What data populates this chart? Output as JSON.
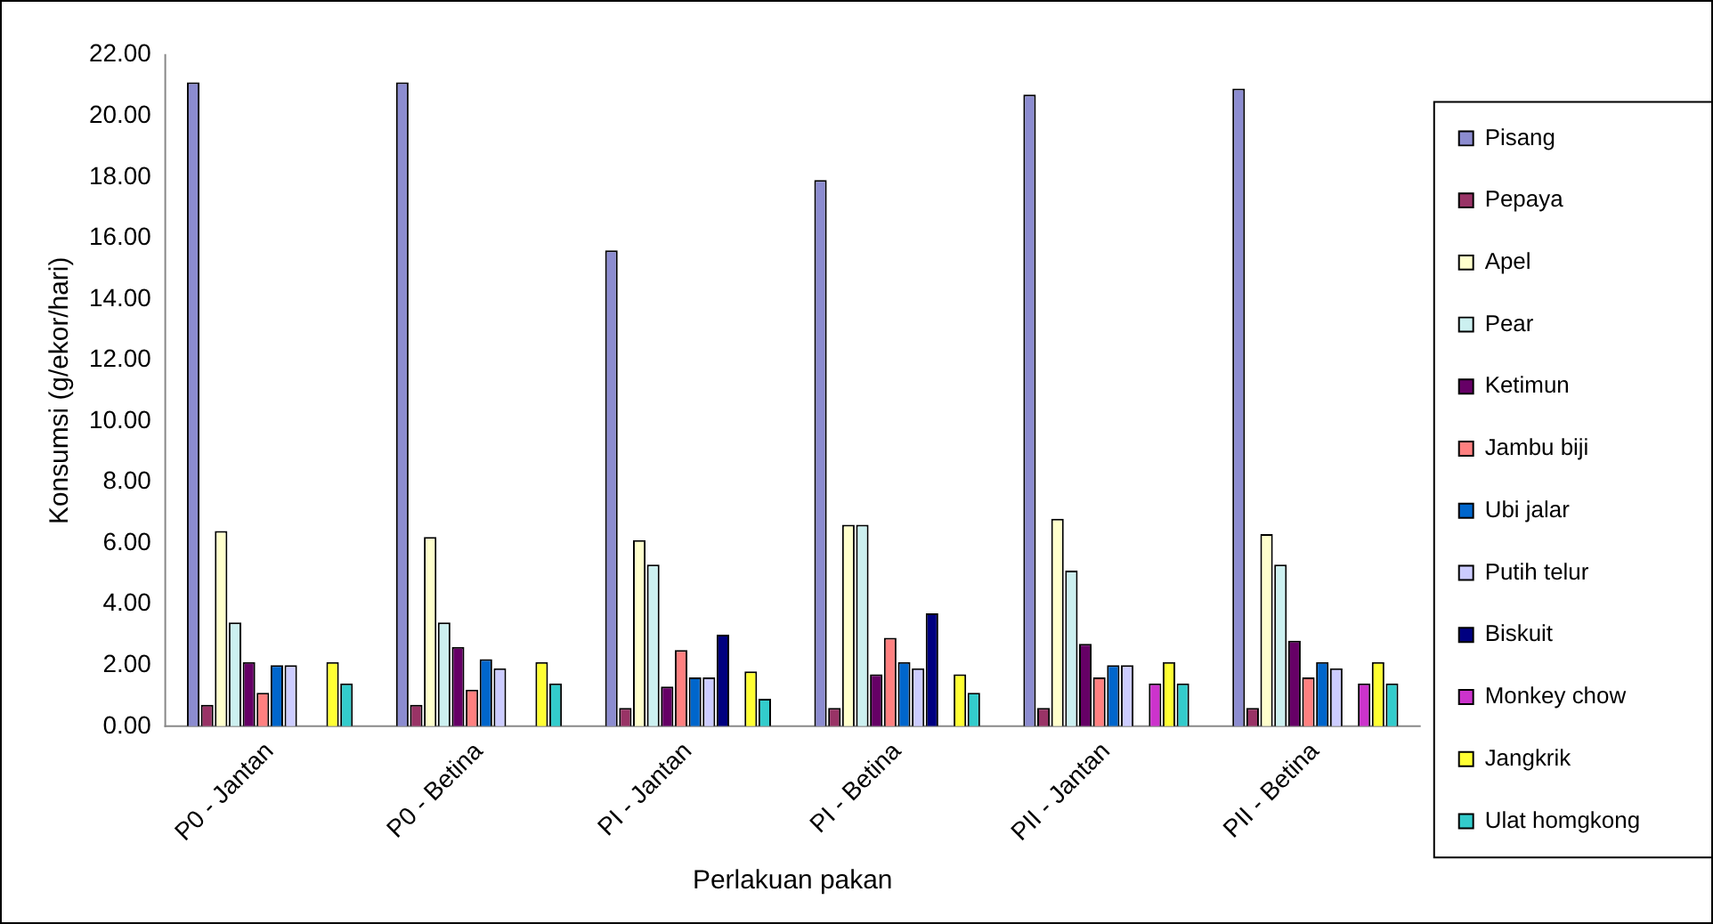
{
  "chart_data": {
    "type": "bar",
    "xlabel": "Perlakuan pakan",
    "ylabel": "Konsumsi (g/ekor/hari)",
    "categories": [
      "P0 - Jantan",
      "P0 - Betina",
      "PI - Jantan",
      "PI - Betina",
      "PII - Jantan",
      "PII - Betina"
    ],
    "ylim": [
      0,
      22
    ],
    "yticks": [
      {
        "value": 0,
        "label": "0.00"
      },
      {
        "value": 2,
        "label": "2.00"
      },
      {
        "value": 4,
        "label": "4.00"
      },
      {
        "value": 6,
        "label": "6.00"
      },
      {
        "value": 8,
        "label": "8.00"
      },
      {
        "value": 10,
        "label": "10.00"
      },
      {
        "value": 12,
        "label": "12.00"
      },
      {
        "value": 14,
        "label": "14.00"
      },
      {
        "value": 16,
        "label": "16.00"
      },
      {
        "value": 18,
        "label": "18.00"
      },
      {
        "value": 20,
        "label": "20.00"
      },
      {
        "value": 22,
        "label": "22.00"
      }
    ],
    "grid": false,
    "legend": "right",
    "series": [
      {
        "name": "Pisang",
        "color": "#8c8cd0",
        "values": [
          21.1,
          21.1,
          15.6,
          17.9,
          20.7,
          20.9
        ]
      },
      {
        "name": "Pepaya",
        "color": "#993366",
        "values": [
          0.7,
          0.7,
          0.6,
          0.6,
          0.6,
          0.6
        ]
      },
      {
        "name": "Apel",
        "color": "#ffffcc",
        "values": [
          6.4,
          6.2,
          6.1,
          6.6,
          6.8,
          6.3
        ]
      },
      {
        "name": "Pear",
        "color": "#ccf0f0",
        "values": [
          3.4,
          3.4,
          5.3,
          6.6,
          5.1,
          5.3
        ]
      },
      {
        "name": "Ketimun",
        "color": "#660066",
        "values": [
          2.1,
          2.6,
          1.3,
          1.7,
          2.7,
          2.8
        ]
      },
      {
        "name": "Jambu biji",
        "color": "#ff8080",
        "values": [
          1.1,
          1.2,
          2.5,
          2.9,
          1.6,
          1.6
        ]
      },
      {
        "name": "Ubi jalar",
        "color": "#0066cc",
        "values": [
          2.0,
          2.2,
          1.6,
          2.1,
          2.0,
          2.1
        ]
      },
      {
        "name": "Putih telur",
        "color": "#ccccff",
        "values": [
          2.0,
          1.9,
          1.6,
          1.9,
          2.0,
          1.9
        ]
      },
      {
        "name": "Biskuit",
        "color": "#000080",
        "values": [
          0,
          0,
          3.0,
          3.7,
          0,
          0
        ]
      },
      {
        "name": "Monkey chow",
        "color": "#cc33cc",
        "values": [
          0,
          0,
          0,
          0,
          1.4,
          1.4
        ]
      },
      {
        "name": "Jangkrik",
        "color": "#ffff33",
        "values": [
          2.1,
          2.1,
          1.8,
          1.7,
          2.1,
          2.1
        ]
      },
      {
        "name": "Ulat homgkong",
        "color": "#33cccc",
        "values": [
          1.4,
          1.4,
          0.9,
          1.1,
          1.4,
          1.4
        ]
      }
    ]
  }
}
